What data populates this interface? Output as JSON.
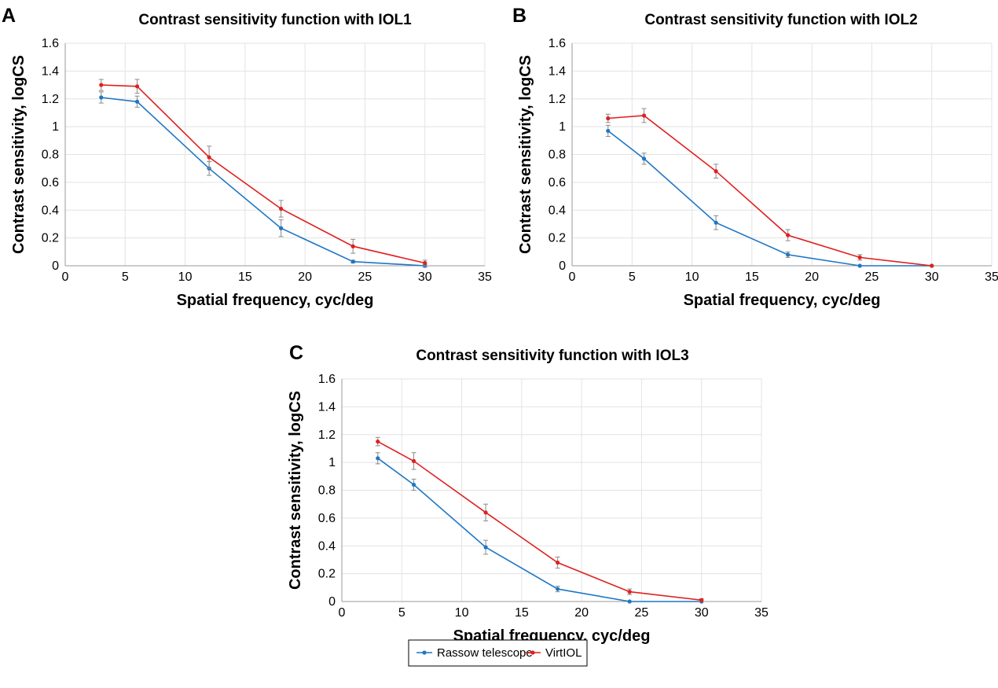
{
  "chart_data": [
    {
      "type": "line",
      "panel_label": "A",
      "title": "Contrast sensitivity function with IOL1",
      "xlabel": "Spatial frequency, cyc/deg",
      "ylabel": "Contrast sensitivity, logCS",
      "xlim": [
        0,
        35
      ],
      "ylim": [
        0,
        1.6
      ],
      "xticks": [
        0,
        5,
        10,
        15,
        20,
        25,
        30,
        35
      ],
      "yticks": [
        0,
        0.2,
        0.4,
        0.6,
        0.8,
        1,
        1.2,
        1.4,
        1.6
      ],
      "grid": true,
      "x": [
        3,
        6,
        12,
        18,
        24,
        30
      ],
      "series": [
        {
          "name": "Rassow telescope",
          "color": "#1f77c4",
          "values": [
            1.21,
            1.18,
            0.7,
            0.27,
            0.03,
            0.0
          ],
          "errors": [
            0.04,
            0.04,
            0.05,
            0.06,
            0.01,
            0.01
          ]
        },
        {
          "name": "VirtIOL",
          "color": "#e02020",
          "values": [
            1.3,
            1.29,
            0.78,
            0.41,
            0.14,
            0.02
          ],
          "errors": [
            0.04,
            0.05,
            0.08,
            0.06,
            0.05,
            0.02
          ]
        }
      ]
    },
    {
      "type": "line",
      "panel_label": "B",
      "title": "Contrast sensitivity function with IOL2",
      "xlabel": "Spatial frequency, cyc/deg",
      "ylabel": "Contrast sensitivity, logCS",
      "xlim": [
        0,
        35
      ],
      "ylim": [
        0,
        1.6
      ],
      "xticks": [
        0,
        5,
        10,
        15,
        20,
        25,
        30,
        35
      ],
      "yticks": [
        0,
        0.2,
        0.4,
        0.6,
        0.8,
        1,
        1.2,
        1.4,
        1.6
      ],
      "grid": true,
      "x": [
        3,
        6,
        12,
        18,
        24,
        30
      ],
      "series": [
        {
          "name": "Rassow telescope",
          "color": "#1f77c4",
          "values": [
            0.97,
            0.77,
            0.31,
            0.08,
            0.0,
            0.0
          ],
          "errors": [
            0.04,
            0.04,
            0.05,
            0.02,
            0.0,
            0.0
          ]
        },
        {
          "name": "VirtIOL",
          "color": "#e02020",
          "values": [
            1.06,
            1.08,
            0.68,
            0.22,
            0.06,
            0.0
          ],
          "errors": [
            0.03,
            0.05,
            0.05,
            0.04,
            0.02,
            0.0
          ]
        }
      ]
    },
    {
      "type": "line",
      "panel_label": "C",
      "title": "Contrast sensitivity function with IOL3",
      "xlabel": "Spatial frequency, cyc/deg",
      "ylabel": "Contrast sensitivity, logCS",
      "xlim": [
        0,
        35
      ],
      "ylim": [
        0,
        1.6
      ],
      "xticks": [
        0,
        5,
        10,
        15,
        20,
        25,
        30,
        35
      ],
      "yticks": [
        0,
        0.2,
        0.4,
        0.6,
        0.8,
        1,
        1.2,
        1.4,
        1.6
      ],
      "grid": true,
      "x": [
        3,
        6,
        12,
        18,
        24,
        30
      ],
      "series": [
        {
          "name": "Rassow telescope",
          "color": "#1f77c4",
          "values": [
            1.03,
            0.84,
            0.39,
            0.09,
            0.0,
            0.0
          ],
          "errors": [
            0.04,
            0.04,
            0.05,
            0.02,
            0.0,
            0.0
          ]
        },
        {
          "name": "VirtIOL",
          "color": "#e02020",
          "values": [
            1.15,
            1.01,
            0.64,
            0.28,
            0.07,
            0.01
          ],
          "errors": [
            0.03,
            0.06,
            0.06,
            0.04,
            0.02,
            0.01
          ]
        }
      ]
    }
  ],
  "legend": {
    "placement": "bottom-center",
    "entries": [
      {
        "label": "Rassow telescope",
        "color": "#1f77c4"
      },
      {
        "label": "VirtIOL",
        "color": "#e02020"
      }
    ]
  }
}
